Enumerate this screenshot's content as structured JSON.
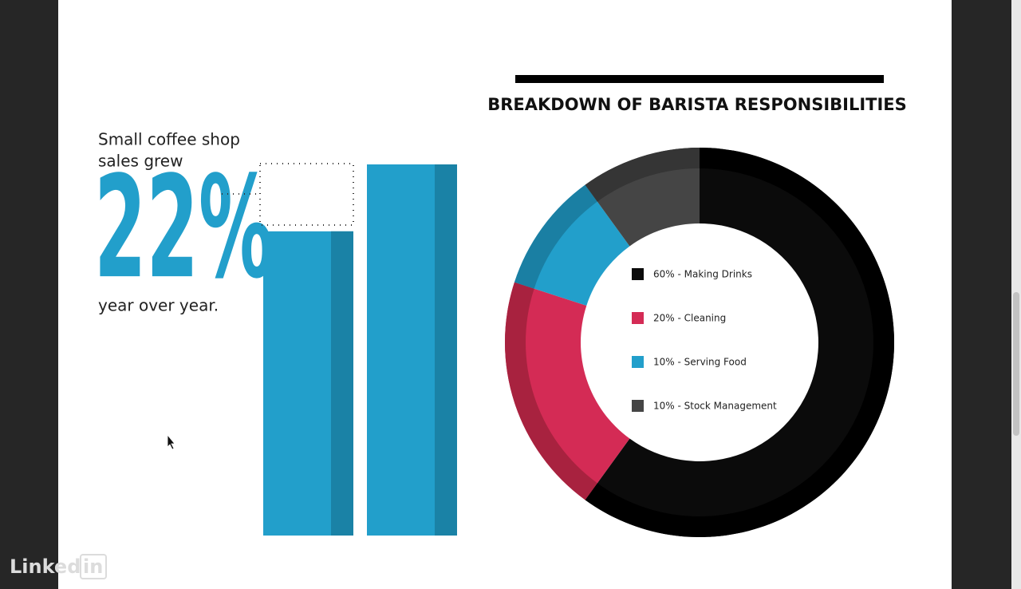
{
  "headline": {
    "lines": [
      "Small coffee shop",
      "sales grew"
    ],
    "stat": "22%",
    "footer": "year over year."
  },
  "chart_data": [
    {
      "type": "bar",
      "categories": [
        null,
        null
      ],
      "values": [
        100,
        122
      ],
      "color": "#229fcb",
      "shade_color": "#1a82a6"
    },
    {
      "type": "pie",
      "title": "BREAKDOWN OF BARISTA RESPONSIBILITIES",
      "values": [
        60,
        20,
        10,
        10
      ],
      "labels": [
        "60% - Making Drinks",
        "20% - Cleaning",
        "10% - Serving Food",
        "10% - Stock Management"
      ],
      "colors": [
        "#0b0b0b",
        "#d42b55",
        "#229fcb",
        "#454545"
      ],
      "rim_colors": [
        "#000000",
        "#a8223f",
        "#1a7fa3",
        "#353535"
      ]
    }
  ],
  "watermark": {
    "left": "Linked",
    "right": "in"
  }
}
